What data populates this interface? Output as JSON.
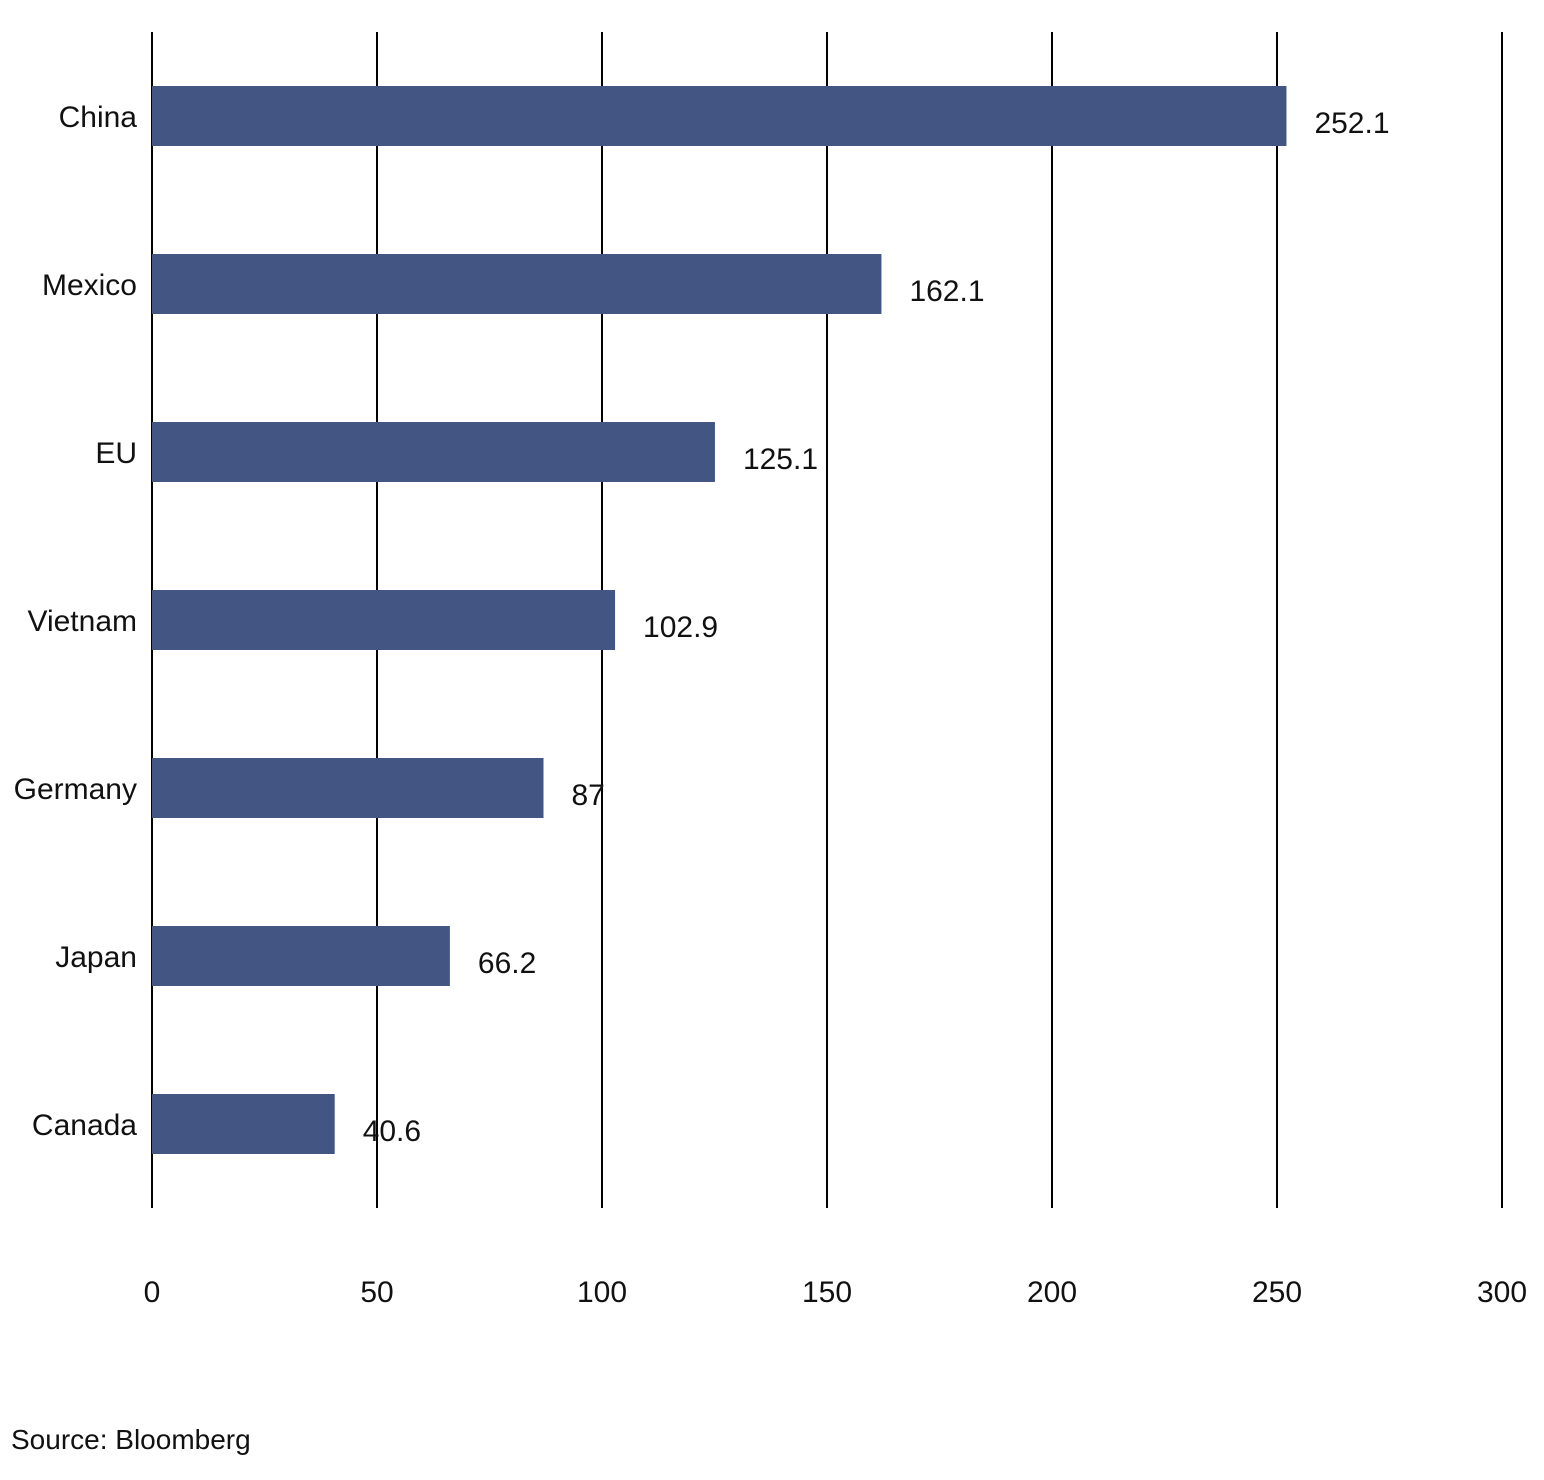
{
  "chart_data": {
    "type": "bar",
    "orientation": "horizontal",
    "categories": [
      "China",
      "Mexico",
      "EU",
      "Vietnam",
      "Germany",
      "Japan",
      "Canada"
    ],
    "values": [
      252.1,
      162.1,
      125.1,
      102.9,
      87,
      66.2,
      40.6
    ],
    "value_labels": [
      "252.1",
      "162.1",
      "125.1",
      "102.9",
      "87",
      "66.2",
      "40.6"
    ],
    "xlim": [
      0,
      300
    ],
    "xticks": [
      0,
      50,
      100,
      150,
      200,
      250,
      300
    ],
    "xtick_labels": [
      "0",
      "50",
      "100",
      "150",
      "200",
      "250",
      "300"
    ],
    "grid": "vertical",
    "legend": "none",
    "bar_color": "#435683",
    "grid_color": "#000000"
  },
  "footer": {
    "source": "Source: Bloomberg"
  }
}
